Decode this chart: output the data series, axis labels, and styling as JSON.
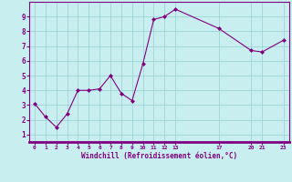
{
  "x": [
    0,
    1,
    2,
    3,
    4,
    5,
    6,
    7,
    8,
    9,
    10,
    11,
    12,
    13,
    17,
    20,
    21,
    23
  ],
  "y": [
    3.1,
    2.2,
    1.5,
    2.4,
    4.0,
    4.0,
    4.1,
    5.0,
    3.8,
    3.3,
    5.8,
    8.8,
    9.0,
    9.5,
    8.2,
    6.7,
    6.6,
    7.4
  ],
  "xticks": [
    0,
    1,
    2,
    3,
    4,
    5,
    6,
    7,
    8,
    9,
    10,
    11,
    12,
    13,
    17,
    20,
    21,
    23
  ],
  "xtick_labels": [
    "0",
    "1",
    "2",
    "3",
    "4",
    "5",
    "6",
    "7",
    "8",
    "9",
    "10",
    "11",
    "12",
    "13",
    "17",
    "20",
    "21",
    "23"
  ],
  "yticks": [
    1,
    2,
    3,
    4,
    5,
    6,
    7,
    8,
    9
  ],
  "ylim": [
    0.5,
    10.0
  ],
  "xlim": [
    -0.5,
    23.5
  ],
  "xlabel": "Windchill (Refroidissement éolien,°C)",
  "line_color": "#800080",
  "marker_color": "#800080",
  "bg_color": "#c8eef0",
  "grid_color": "#9ed4d8",
  "axis_color": "#800080",
  "tick_color": "#800080",
  "label_color": "#800080"
}
